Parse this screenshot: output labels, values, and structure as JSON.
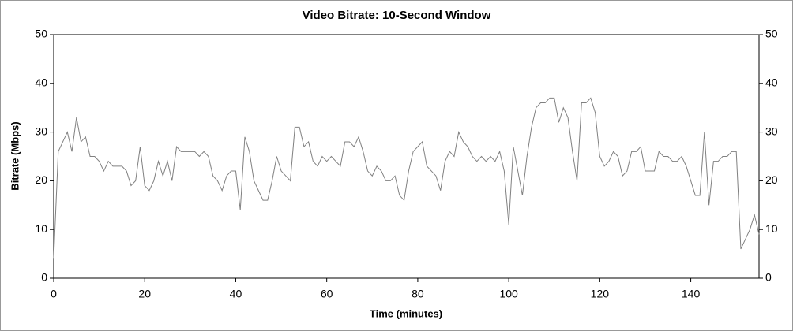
{
  "chart_data": {
    "type": "line",
    "title": "Video Bitrate: 10-Second Window",
    "x_label": "Time (minutes)",
    "y_label": "Bitrate (Mbps)",
    "x": [
      0,
      1,
      2,
      3,
      4,
      5,
      6,
      7,
      8,
      9,
      10,
      11,
      12,
      13,
      14,
      15,
      16,
      17,
      18,
      19,
      20,
      21,
      22,
      23,
      24,
      25,
      26,
      27,
      28,
      29,
      30,
      31,
      32,
      33,
      34,
      35,
      36,
      37,
      38,
      39,
      40,
      41,
      42,
      43,
      44,
      45,
      46,
      47,
      48,
      49,
      50,
      51,
      52,
      53,
      54,
      55,
      56,
      57,
      58,
      59,
      60,
      61,
      62,
      63,
      64,
      65,
      66,
      67,
      68,
      69,
      70,
      71,
      72,
      73,
      74,
      75,
      76,
      77,
      78,
      79,
      80,
      81,
      82,
      83,
      84,
      85,
      86,
      87,
      88,
      89,
      90,
      91,
      92,
      93,
      94,
      95,
      96,
      97,
      98,
      99,
      100,
      101,
      102,
      103,
      104,
      105,
      106,
      107,
      108,
      109,
      110,
      111,
      112,
      113,
      114,
      115,
      116,
      117,
      118,
      119,
      120,
      121,
      122,
      123,
      124,
      125,
      126,
      127,
      128,
      129,
      130,
      131,
      132,
      133,
      134,
      135,
      136,
      137,
      138,
      139,
      140,
      141,
      142,
      143,
      144,
      145,
      146,
      147,
      148,
      149,
      150,
      151,
      152,
      153,
      154,
      155
    ],
    "series": [
      {
        "name": "Bitrate",
        "color": "#808080",
        "values": [
          4,
          26,
          28,
          30,
          26,
          33,
          28,
          29,
          25,
          25,
          24,
          22,
          24,
          23,
          23,
          23,
          22,
          19,
          20,
          27,
          19,
          18,
          20,
          24,
          21,
          24,
          20,
          27,
          26,
          26,
          26,
          26,
          25,
          26,
          25,
          21,
          20,
          18,
          21,
          22,
          22,
          14,
          29,
          26,
          20,
          18,
          16,
          16,
          20,
          25,
          22,
          21,
          20,
          31,
          31,
          27,
          28,
          24,
          23,
          25,
          24,
          25,
          24,
          23,
          28,
          28,
          27,
          29,
          26,
          22,
          21,
          23,
          22,
          20,
          20,
          21,
          17,
          16,
          22,
          26,
          27,
          28,
          23,
          22,
          21,
          18,
          24,
          26,
          25,
          30,
          28,
          27,
          25,
          24,
          25,
          24,
          25,
          24,
          26,
          22,
          11,
          27,
          22,
          17,
          25,
          31,
          35,
          36,
          36,
          37,
          37,
          32,
          35,
          33,
          26,
          20,
          36,
          36,
          37,
          34,
          25,
          23,
          24,
          26,
          25,
          21,
          22,
          26,
          26,
          27,
          22,
          22,
          22,
          26,
          25,
          25,
          24,
          24,
          25,
          23,
          20,
          17,
          17,
          30,
          15,
          24,
          24,
          25,
          25,
          26,
          26,
          6,
          8,
          10,
          13,
          9
        ]
      }
    ],
    "xlim": [
      0,
      155
    ],
    "ylim": [
      0,
      50
    ],
    "xticks": [
      0,
      20,
      40,
      60,
      80,
      100,
      120,
      140
    ],
    "yticks": [
      0,
      10,
      20,
      30,
      40,
      50
    ]
  }
}
